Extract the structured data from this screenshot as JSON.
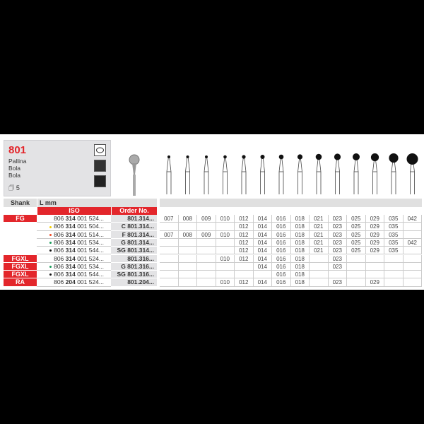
{
  "product": {
    "code": "801",
    "names": [
      "Pallina",
      "Bola",
      "Bola"
    ],
    "pack_qty": "5",
    "icons": [
      "rotation-icon",
      "tooth-icon",
      "lab-icon"
    ]
  },
  "headers": {
    "shank": "Shank",
    "length": "L mm",
    "iso": "ISO",
    "order": "Order No."
  },
  "colors": {
    "accent": "#e3262b",
    "yellow": "#f5d000",
    "red": "#f04a24",
    "green": "#1a9b5a",
    "black": "#111111"
  },
  "rows": [
    {
      "shank": "FG",
      "dot": null,
      "iso": [
        "806 ",
        "314",
        " 001 524..."
      ],
      "order": "801.314...",
      "sizes": [
        "007",
        "008",
        "009",
        "010",
        "012",
        "014",
        "016",
        "018",
        "021",
        "023",
        "025",
        "029",
        "035",
        "042"
      ]
    },
    {
      "shank": "",
      "dot": "yellow",
      "iso": [
        "806 ",
        "314",
        " 001 504..."
      ],
      "order": "C 801.314...",
      "sizes": [
        "",
        "",
        "",
        "",
        "012",
        "014",
        "016",
        "018",
        "021",
        "023",
        "025",
        "029",
        "035",
        ""
      ]
    },
    {
      "shank": "",
      "dot": "red",
      "iso": [
        "806 ",
        "314",
        " 001 514..."
      ],
      "order": "F 801.314...",
      "sizes": [
        "007",
        "008",
        "009",
        "010",
        "012",
        "014",
        "016",
        "018",
        "021",
        "023",
        "025",
        "029",
        "035",
        ""
      ]
    },
    {
      "shank": "",
      "dot": "green",
      "iso": [
        "806 ",
        "314",
        " 001 534..."
      ],
      "order": "G 801.314...",
      "sizes": [
        "",
        "",
        "",
        "",
        "012",
        "014",
        "016",
        "018",
        "021",
        "023",
        "025",
        "029",
        "035",
        "042"
      ]
    },
    {
      "shank": "",
      "dot": "black",
      "iso": [
        "806 ",
        "314",
        " 001 544..."
      ],
      "order": "SG 801.314...",
      "sizes": [
        "",
        "",
        "",
        "",
        "012",
        "014",
        "016",
        "018",
        "021",
        "023",
        "025",
        "029",
        "035",
        ""
      ]
    },
    {
      "shank": "FGXL",
      "dot": null,
      "iso": [
        "806 ",
        "314",
        " 001 524..."
      ],
      "order": "801.316...",
      "sizes": [
        "",
        "",
        "",
        "010",
        "012",
        "014",
        "016",
        "018",
        "",
        "023",
        "",
        "",
        "",
        ""
      ]
    },
    {
      "shank": "FGXL",
      "dot": "green",
      "iso": [
        "806 ",
        "314",
        " 001 534..."
      ],
      "order": "G 801.316...",
      "sizes": [
        "",
        "",
        "",
        "",
        "",
        "014",
        "016",
        "018",
        "",
        "023",
        "",
        "",
        "",
        ""
      ]
    },
    {
      "shank": "FGXL",
      "dot": "black",
      "iso": [
        "806 ",
        "314",
        " 001 544..."
      ],
      "order": "SG 801.316...",
      "sizes": [
        "",
        "",
        "",
        "",
        "",
        "",
        "016",
        "018",
        "",
        "",
        "",
        "",
        "",
        ""
      ]
    },
    {
      "shank": "RA",
      "dot": null,
      "iso": [
        "806 ",
        "204",
        " 001 524..."
      ],
      "order": "801.204...",
      "sizes": [
        "",
        "",
        "",
        "010",
        "012",
        "014",
        "016",
        "018",
        "",
        "023",
        "",
        "029",
        "",
        ""
      ]
    }
  ]
}
